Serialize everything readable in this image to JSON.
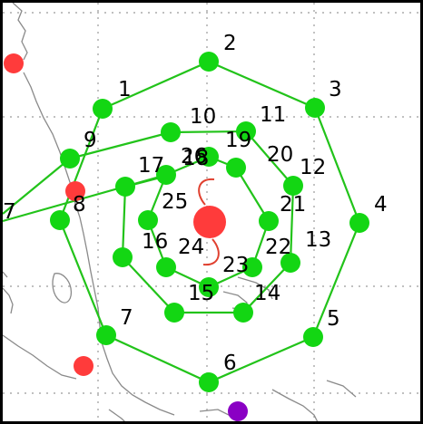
{
  "colors": {
    "background": "#ffffff",
    "frame": "#000000",
    "grid": "#999999",
    "coastline": "#8a8a8a",
    "pattern_lines": "#22c31a",
    "pattern_nodes": "#13d613",
    "storm_center": "#ff3b3b",
    "storm_symbol": "#e0402f",
    "city_markers": "#ff3b3b",
    "purple_marker": "#8a00c4",
    "label_text": "#000000"
  },
  "icons": {
    "storm_center": "hurricane-symbol-icon",
    "node": "green-circle-icon",
    "city": "red-circle-icon"
  },
  "point_labels": {
    "p1": "1",
    "p2": "2",
    "p3": "3",
    "p4": "4",
    "p5": "5",
    "p6": "6",
    "p7": "7",
    "p8": "8",
    "p9": "9",
    "p10": "10",
    "p11": "11",
    "p12": "12",
    "p13": "13",
    "p14": "14",
    "p15": "15",
    "p16": "16",
    "p17": "17",
    "p18": "18",
    "p19": "19",
    "p20": "20",
    "p21": "21",
    "p22": "22",
    "p23": "23",
    "p24": "24",
    "p25": "25",
    "p26": "26",
    "p27": "7"
  }
}
